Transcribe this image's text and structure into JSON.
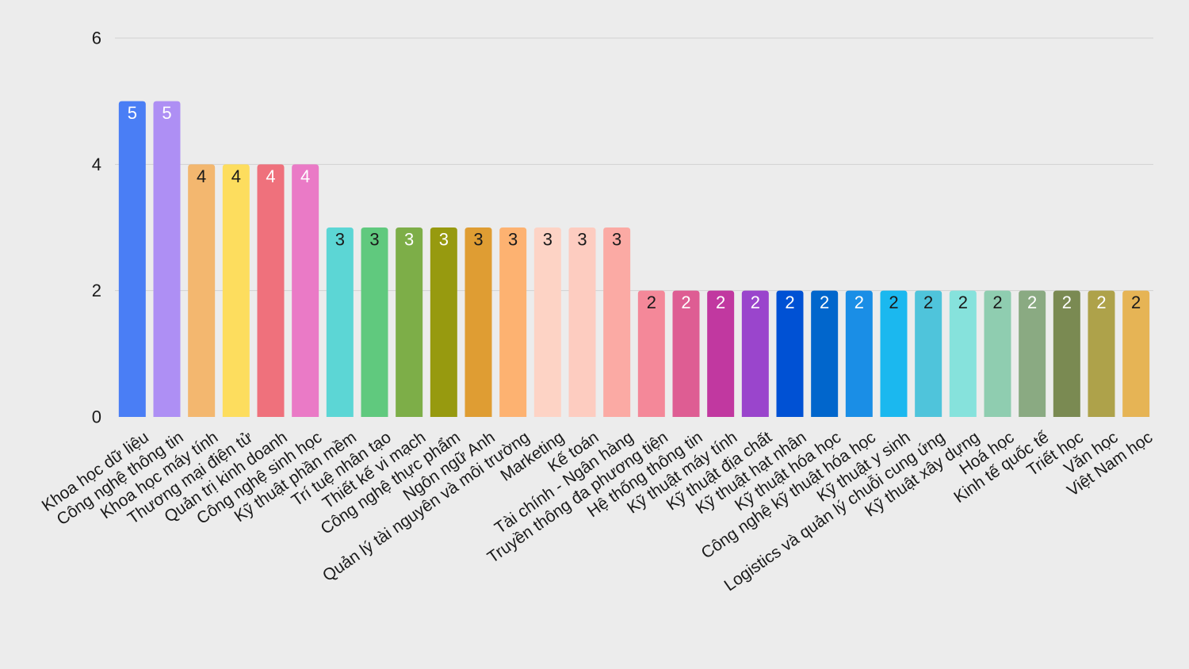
{
  "chart_data": {
    "type": "bar",
    "title": "",
    "xlabel": "",
    "ylabel": "",
    "ylim": [
      0,
      6
    ],
    "yticks": [
      0,
      2,
      4,
      6
    ],
    "grid": true,
    "legend": "none",
    "data_labels": true,
    "categories": [
      "Khoa học dữ liệu",
      "Công nghệ thông tin",
      "Khoa học máy tính",
      "Thương mại điện tử",
      "Quản trị kinh doanh",
      "Công nghệ sinh học",
      "Kỹ thuật phần mềm",
      "Trí tuệ nhân tạo",
      "Thiết kế vi mạch",
      "Công nghệ thực phẩm",
      "Ngôn ngữ Anh",
      "Quản lý tài nguyên và môi trường",
      "Marketing",
      "Kế toán",
      "Tài chính - Ngân hàng",
      "Truyền thông đa phương tiện",
      "Hệ thống thông tin",
      "Kỹ thuật máy tính",
      "Kỹ thuật địa chất",
      "Kỹ thuật hạt nhân",
      "Kỹ thuật hóa học",
      "Công nghệ kỹ thuật hóa học",
      "Kỹ thuật y sinh",
      "Logistics và quản lý chuỗi cung ứng",
      "Kỹ thuật xây dựng",
      "Hoá học",
      "Kinh tế quốc tế",
      "Triết học",
      "Văn học",
      "Việt Nam học"
    ],
    "values": [
      5,
      5,
      4,
      4,
      4,
      4,
      3,
      3,
      3,
      3,
      3,
      3,
      3,
      3,
      3,
      2,
      2,
      2,
      2,
      2,
      2,
      2,
      2,
      2,
      2,
      2,
      2,
      2,
      2,
      2
    ],
    "colors": [
      "#4a7ef5",
      "#ae8ff4",
      "#f3b76f",
      "#fddd5e",
      "#ef717c",
      "#ea7ac6",
      "#5cd6d5",
      "#60c97e",
      "#7dae48",
      "#979a0f",
      "#df9d33",
      "#fdb271",
      "#fdd3c5",
      "#fdccc0",
      "#fbaaa4",
      "#f48899",
      "#de5d93",
      "#c138a0",
      "#9a45cc",
      "#0051d4",
      "#0166cc",
      "#1a8ee6",
      "#1bb8ef",
      "#4fc4db",
      "#86e2dc",
      "#8fcdb0",
      "#8aaa82",
      "#7a8a52",
      "#aea24a",
      "#e6b455"
    ],
    "label_colors": [
      "#ffffff",
      "#ffffff",
      "#1a1a1a",
      "#1a1a1a",
      "#ffffff",
      "#ffffff",
      "#1a1a1a",
      "#1a1a1a",
      "#ffffff",
      "#ffffff",
      "#1a1a1a",
      "#1a1a1a",
      "#1a1a1a",
      "#1a1a1a",
      "#1a1a1a",
      "#1a1a1a",
      "#ffffff",
      "#ffffff",
      "#ffffff",
      "#ffffff",
      "#ffffff",
      "#ffffff",
      "#1a1a1a",
      "#1a1a1a",
      "#1a1a1a",
      "#1a1a1a",
      "#ffffff",
      "#ffffff",
      "#ffffff",
      "#1a1a1a"
    ]
  }
}
